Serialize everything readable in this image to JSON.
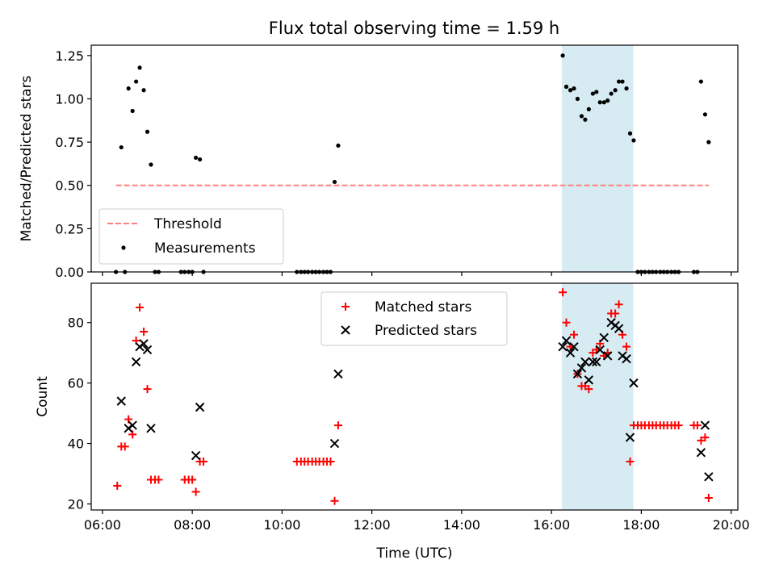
{
  "title": "Flux total observing time = 1.59 h",
  "chart_data": [
    {
      "type": "scatter",
      "ylabel": "Matched/Predicted stars",
      "xlabel": "",
      "xlim": [
        5.75,
        20.15
      ],
      "ylim": [
        0,
        1.31
      ],
      "yticks": [
        0,
        0.25,
        0.5,
        0.75,
        1.0,
        1.25
      ],
      "ytick_labels": [
        "0.00",
        "0.25",
        "0.50",
        "0.75",
        "1.00",
        "1.25"
      ],
      "highlight_span": [
        16.23,
        17.82
      ],
      "threshold": {
        "name": "Threshold",
        "y": 0.5,
        "x_range": [
          6.3,
          19.5
        ],
        "color": "#ff7f7f",
        "style": "dashed"
      },
      "legend": {
        "position": "lower left",
        "entries": [
          "Threshold",
          "Measurements"
        ]
      },
      "series": [
        {
          "name": "Measurements",
          "color": "#000000",
          "marker": "dot",
          "points": [
            [
              6.3,
              0
            ],
            [
              6.42,
              0.72
            ],
            [
              6.5,
              0
            ],
            [
              6.58,
              1.06
            ],
            [
              6.67,
              0.93
            ],
            [
              6.75,
              1.1
            ],
            [
              6.83,
              1.18
            ],
            [
              6.92,
              1.05
            ],
            [
              7.0,
              0.81
            ],
            [
              7.08,
              0.62
            ],
            [
              7.17,
              0
            ],
            [
              7.25,
              0
            ],
            [
              7.75,
              0
            ],
            [
              7.83,
              0
            ],
            [
              7.92,
              0
            ],
            [
              8.0,
              0
            ],
            [
              8.08,
              0.66
            ],
            [
              8.17,
              0.65
            ],
            [
              8.25,
              0
            ],
            [
              10.33,
              0
            ],
            [
              10.42,
              0
            ],
            [
              10.5,
              0
            ],
            [
              10.58,
              0
            ],
            [
              10.67,
              0
            ],
            [
              10.75,
              0
            ],
            [
              10.83,
              0
            ],
            [
              10.92,
              0
            ],
            [
              11.0,
              0
            ],
            [
              11.08,
              0
            ],
            [
              11.17,
              0.52
            ],
            [
              11.25,
              0.73
            ],
            [
              16.25,
              1.25
            ],
            [
              16.33,
              1.07
            ],
            [
              16.42,
              1.05
            ],
            [
              16.5,
              1.06
            ],
            [
              16.58,
              1.0
            ],
            [
              16.67,
              0.9
            ],
            [
              16.75,
              0.88
            ],
            [
              16.83,
              0.94
            ],
            [
              16.92,
              1.03
            ],
            [
              17.0,
              1.04
            ],
            [
              17.08,
              0.98
            ],
            [
              17.17,
              0.98
            ],
            [
              17.25,
              0.99
            ],
            [
              17.33,
              1.03
            ],
            [
              17.42,
              1.05
            ],
            [
              17.5,
              1.1
            ],
            [
              17.58,
              1.1
            ],
            [
              17.67,
              1.06
            ],
            [
              17.75,
              0.8
            ],
            [
              17.83,
              0.76
            ],
            [
              17.92,
              0
            ],
            [
              18.0,
              0
            ],
            [
              18.08,
              0
            ],
            [
              18.17,
              0
            ],
            [
              18.25,
              0
            ],
            [
              18.33,
              0
            ],
            [
              18.42,
              0
            ],
            [
              18.5,
              0
            ],
            [
              18.58,
              0
            ],
            [
              18.67,
              0
            ],
            [
              18.75,
              0
            ],
            [
              18.83,
              0
            ],
            [
              19.17,
              0
            ],
            [
              19.25,
              0
            ],
            [
              19.33,
              1.1
            ],
            [
              19.42,
              0.91
            ],
            [
              19.5,
              0.75
            ]
          ]
        }
      ]
    },
    {
      "type": "scatter",
      "ylabel": "Count",
      "xlabel": "Time (UTC)",
      "xlim": [
        5.75,
        20.15
      ],
      "ylim": [
        18,
        93
      ],
      "yticks": [
        20,
        40,
        60,
        80
      ],
      "ytick_labels": [
        "20",
        "40",
        "60",
        "80"
      ],
      "xticks": [
        6,
        8,
        10,
        12,
        14,
        16,
        18,
        20
      ],
      "xtick_labels": [
        "06:00",
        "08:00",
        "10:00",
        "12:00",
        "14:00",
        "16:00",
        "18:00",
        "20:00"
      ],
      "highlight_span": [
        16.23,
        17.82
      ],
      "legend": {
        "position": "upper center",
        "entries": [
          "Matched stars",
          "Predicted stars"
        ]
      },
      "series": [
        {
          "name": "Matched stars",
          "color": "#ff0000",
          "marker": "plus",
          "points": [
            [
              6.33,
              26
            ],
            [
              6.42,
              39
            ],
            [
              6.5,
              39
            ],
            [
              6.58,
              48
            ],
            [
              6.67,
              43
            ],
            [
              6.75,
              74
            ],
            [
              6.83,
              85
            ],
            [
              6.92,
              77
            ],
            [
              7.0,
              58
            ],
            [
              7.08,
              28
            ],
            [
              7.17,
              28
            ],
            [
              7.25,
              28
            ],
            [
              7.83,
              28
            ],
            [
              7.92,
              28
            ],
            [
              8.0,
              28
            ],
            [
              8.08,
              24
            ],
            [
              8.17,
              34
            ],
            [
              8.25,
              34
            ],
            [
              10.33,
              34
            ],
            [
              10.42,
              34
            ],
            [
              10.5,
              34
            ],
            [
              10.58,
              34
            ],
            [
              10.67,
              34
            ],
            [
              10.75,
              34
            ],
            [
              10.83,
              34
            ],
            [
              10.92,
              34
            ],
            [
              11.0,
              34
            ],
            [
              11.08,
              34
            ],
            [
              11.17,
              21
            ],
            [
              11.25,
              46
            ],
            [
              16.25,
              90
            ],
            [
              16.33,
              80
            ],
            [
              16.42,
              72
            ],
            [
              16.5,
              76
            ],
            [
              16.58,
              63
            ],
            [
              16.67,
              59
            ],
            [
              16.75,
              59
            ],
            [
              16.83,
              58
            ],
            [
              16.92,
              70
            ],
            [
              17.0,
              71
            ],
            [
              17.08,
              73
            ],
            [
              17.17,
              69
            ],
            [
              17.25,
              70
            ],
            [
              17.33,
              83
            ],
            [
              17.42,
              83
            ],
            [
              17.5,
              86
            ],
            [
              17.58,
              76
            ],
            [
              17.67,
              72
            ],
            [
              17.75,
              34
            ],
            [
              17.83,
              46
            ],
            [
              17.92,
              46
            ],
            [
              18.0,
              46
            ],
            [
              18.08,
              46
            ],
            [
              18.17,
              46
            ],
            [
              18.25,
              46
            ],
            [
              18.33,
              46
            ],
            [
              18.42,
              46
            ],
            [
              18.5,
              46
            ],
            [
              18.58,
              46
            ],
            [
              18.67,
              46
            ],
            [
              18.75,
              46
            ],
            [
              18.83,
              46
            ],
            [
              19.17,
              46
            ],
            [
              19.25,
              46
            ],
            [
              19.33,
              41
            ],
            [
              19.42,
              42
            ],
            [
              19.5,
              22
            ]
          ]
        },
        {
          "name": "Predicted stars",
          "color": "#000000",
          "marker": "x",
          "points": [
            [
              6.42,
              54
            ],
            [
              6.58,
              45
            ],
            [
              6.67,
              46
            ],
            [
              6.75,
              67
            ],
            [
              6.83,
              72
            ],
            [
              6.92,
              73
            ],
            [
              7.0,
              71
            ],
            [
              7.08,
              45
            ],
            [
              8.08,
              36
            ],
            [
              8.17,
              52
            ],
            [
              11.17,
              40
            ],
            [
              11.25,
              63
            ],
            [
              16.25,
              72
            ],
            [
              16.33,
              74
            ],
            [
              16.42,
              70
            ],
            [
              16.5,
              72
            ],
            [
              16.58,
              63
            ],
            [
              16.67,
              65
            ],
            [
              16.75,
              67
            ],
            [
              16.83,
              61
            ],
            [
              16.92,
              67
            ],
            [
              17.0,
              67
            ],
            [
              17.08,
              71
            ],
            [
              17.17,
              75
            ],
            [
              17.25,
              69
            ],
            [
              17.33,
              80
            ],
            [
              17.42,
              79
            ],
            [
              17.5,
              78
            ],
            [
              17.58,
              69
            ],
            [
              17.67,
              68
            ],
            [
              17.75,
              42
            ],
            [
              17.83,
              60
            ],
            [
              19.33,
              37
            ],
            [
              19.42,
              46
            ],
            [
              19.5,
              29
            ]
          ]
        }
      ]
    }
  ]
}
